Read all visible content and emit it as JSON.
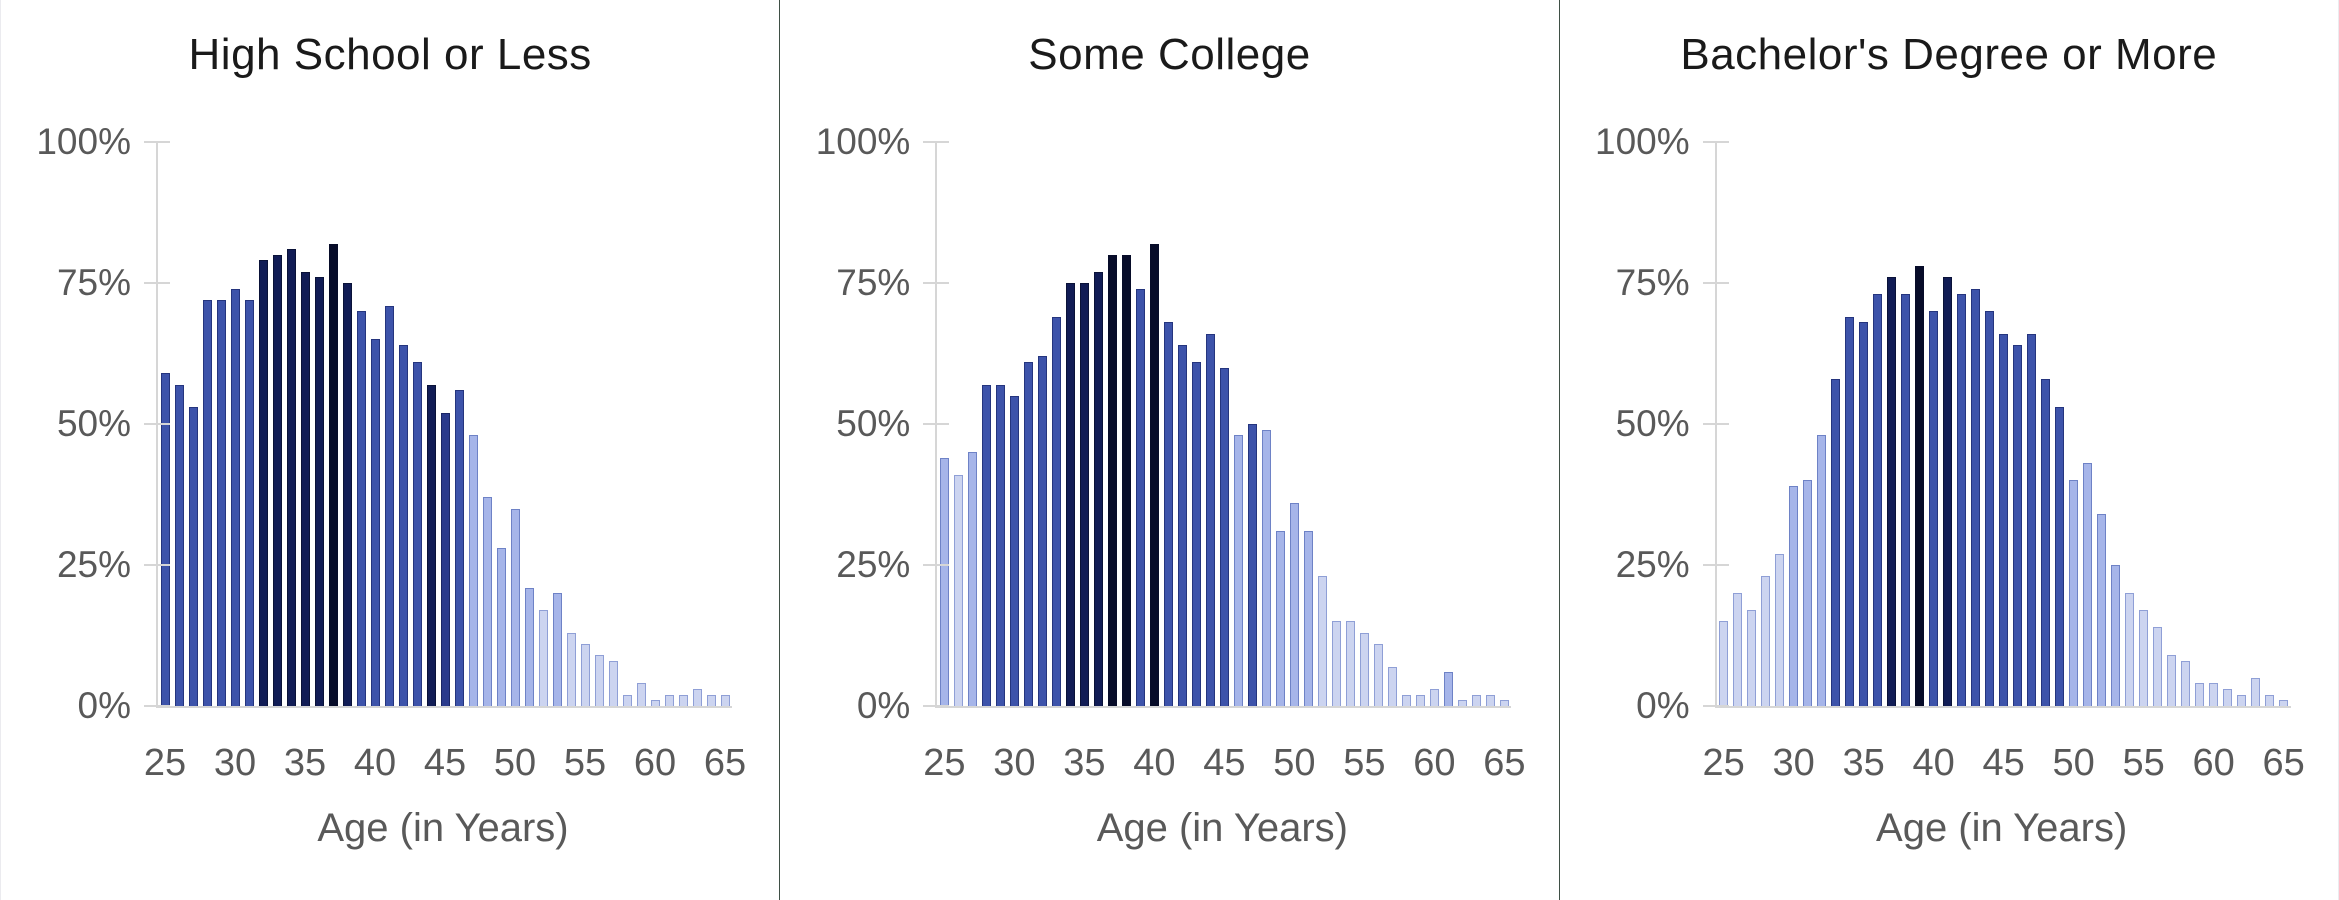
{
  "page": {
    "background": "#ffffff",
    "panel_separator_color": "#3f4f45",
    "edge_border_color": "#ebebef"
  },
  "axis": {
    "y_tick_labels": [
      "100%",
      "75%",
      "50%",
      "25%",
      "0%"
    ],
    "x_tick_labels": [
      "25",
      "30",
      "35",
      "40",
      "45",
      "50",
      "55",
      "60",
      "65"
    ],
    "x_axis_title": "Age (in Years)",
    "age_min": 25,
    "age_max": 65,
    "ylim": [
      0,
      100
    ],
    "gridlines": false,
    "axis_line_color": "#d6d6d6",
    "label_color": "#595959",
    "title_color": "#1a1a1a"
  },
  "bar_color_palette": {
    "p0": {
      "fill": "#ccd4f0",
      "border": "#8f9fd6"
    },
    "p1": {
      "fill": "#a6b5e9",
      "border": "#6e82c6"
    },
    "p2": {
      "fill": "#3d53aa",
      "border": "#25357e"
    },
    "p3": {
      "fill": "#2a3a8c",
      "border": "#1a2666"
    },
    "p4": {
      "fill": "#111c55",
      "border": "#0a1238"
    },
    "p5": {
      "fill": "#070c29",
      "border": "#070c29"
    }
  },
  "chart_data": [
    {
      "type": "bar",
      "title": "High School or Less",
      "xlabel": "Age (in Years)",
      "ylabel": "",
      "ylim": [
        0,
        100
      ],
      "ages": [
        25,
        26,
        27,
        28,
        29,
        30,
        31,
        32,
        33,
        34,
        35,
        36,
        37,
        38,
        39,
        40,
        41,
        42,
        43,
        44,
        45,
        46,
        47,
        48,
        49,
        50,
        51,
        52,
        53,
        54,
        55,
        56,
        57,
        58,
        59,
        60,
        61,
        62,
        63,
        64,
        65
      ],
      "values": [
        59,
        57,
        53,
        72,
        72,
        74,
        72,
        79,
        80,
        81,
        77,
        76,
        82,
        75,
        70,
        65,
        71,
        64,
        61,
        57,
        52,
        56,
        48,
        37,
        28,
        35,
        21,
        17,
        20,
        13,
        11,
        9,
        8,
        2,
        4,
        1,
        2,
        2,
        3,
        2,
        2
      ],
      "colors": [
        "p2",
        "p2",
        "p2",
        "p2",
        "p2",
        "p2",
        "p2",
        "p4",
        "p4",
        "p4",
        "p4",
        "p4",
        "p5",
        "p4",
        "p2",
        "p2",
        "p2",
        "p2",
        "p2",
        "p4",
        "p3",
        "p2",
        "p1",
        "p1",
        "p1",
        "p1",
        "p1",
        "p0",
        "p1",
        "p0",
        "p0",
        "p0",
        "p0",
        "p0",
        "p0",
        "p0",
        "p0",
        "p0",
        "p0",
        "p0",
        "p0"
      ]
    },
    {
      "type": "bar",
      "title": "Some College",
      "xlabel": "Age (in Years)",
      "ylabel": "",
      "ylim": [
        0,
        100
      ],
      "ages": [
        25,
        26,
        27,
        28,
        29,
        30,
        31,
        32,
        33,
        34,
        35,
        36,
        37,
        38,
        39,
        40,
        41,
        42,
        43,
        44,
        45,
        46,
        47,
        48,
        49,
        50,
        51,
        52,
        53,
        54,
        55,
        56,
        57,
        58,
        59,
        60,
        61,
        62,
        63,
        64,
        65
      ],
      "values": [
        44,
        41,
        45,
        57,
        57,
        55,
        61,
        62,
        69,
        75,
        75,
        77,
        80,
        80,
        74,
        82,
        68,
        64,
        61,
        66,
        60,
        48,
        50,
        49,
        31,
        36,
        31,
        23,
        15,
        15,
        13,
        11,
        7,
        2,
        2,
        3,
        6,
        1,
        2,
        2,
        1
      ],
      "colors": [
        "p1",
        "p0",
        "p1",
        "p2",
        "p2",
        "p2",
        "p2",
        "p2",
        "p2",
        "p4",
        "p4",
        "p4",
        "p5",
        "p5",
        "p2",
        "p5",
        "p2",
        "p2",
        "p2",
        "p2",
        "p2",
        "p1",
        "p2",
        "p1",
        "p1",
        "p1",
        "p1",
        "p0",
        "p0",
        "p0",
        "p0",
        "p0",
        "p0",
        "p0",
        "p0",
        "p0",
        "p1",
        "p0",
        "p0",
        "p0",
        "p0"
      ]
    },
    {
      "type": "bar",
      "title": "Bachelor's Degree or More",
      "xlabel": "Age (in Years)",
      "ylabel": "",
      "ylim": [
        0,
        100
      ],
      "ages": [
        25,
        26,
        27,
        28,
        29,
        30,
        31,
        32,
        33,
        34,
        35,
        36,
        37,
        38,
        39,
        40,
        41,
        42,
        43,
        44,
        45,
        46,
        47,
        48,
        49,
        50,
        51,
        52,
        53,
        54,
        55,
        56,
        57,
        58,
        59,
        60,
        61,
        62,
        63,
        64,
        65
      ],
      "values": [
        15,
        20,
        17,
        23,
        27,
        39,
        40,
        48,
        58,
        69,
        68,
        73,
        76,
        73,
        78,
        70,
        76,
        73,
        74,
        70,
        66,
        64,
        66,
        58,
        53,
        40,
        43,
        34,
        25,
        20,
        17,
        14,
        9,
        8,
        4,
        4,
        3,
        2,
        5,
        2,
        1
      ],
      "colors": [
        "p0",
        "p0",
        "p0",
        "p0",
        "p0",
        "p1",
        "p1",
        "p1",
        "p2",
        "p2",
        "p2",
        "p2",
        "p4",
        "p2",
        "p5",
        "p2",
        "p4",
        "p2",
        "p2",
        "p2",
        "p2",
        "p2",
        "p2",
        "p2",
        "p2",
        "p1",
        "p1",
        "p1",
        "p1",
        "p0",
        "p0",
        "p0",
        "p0",
        "p0",
        "p0",
        "p0",
        "p0",
        "p0",
        "p0",
        "p0",
        "p0"
      ]
    }
  ]
}
